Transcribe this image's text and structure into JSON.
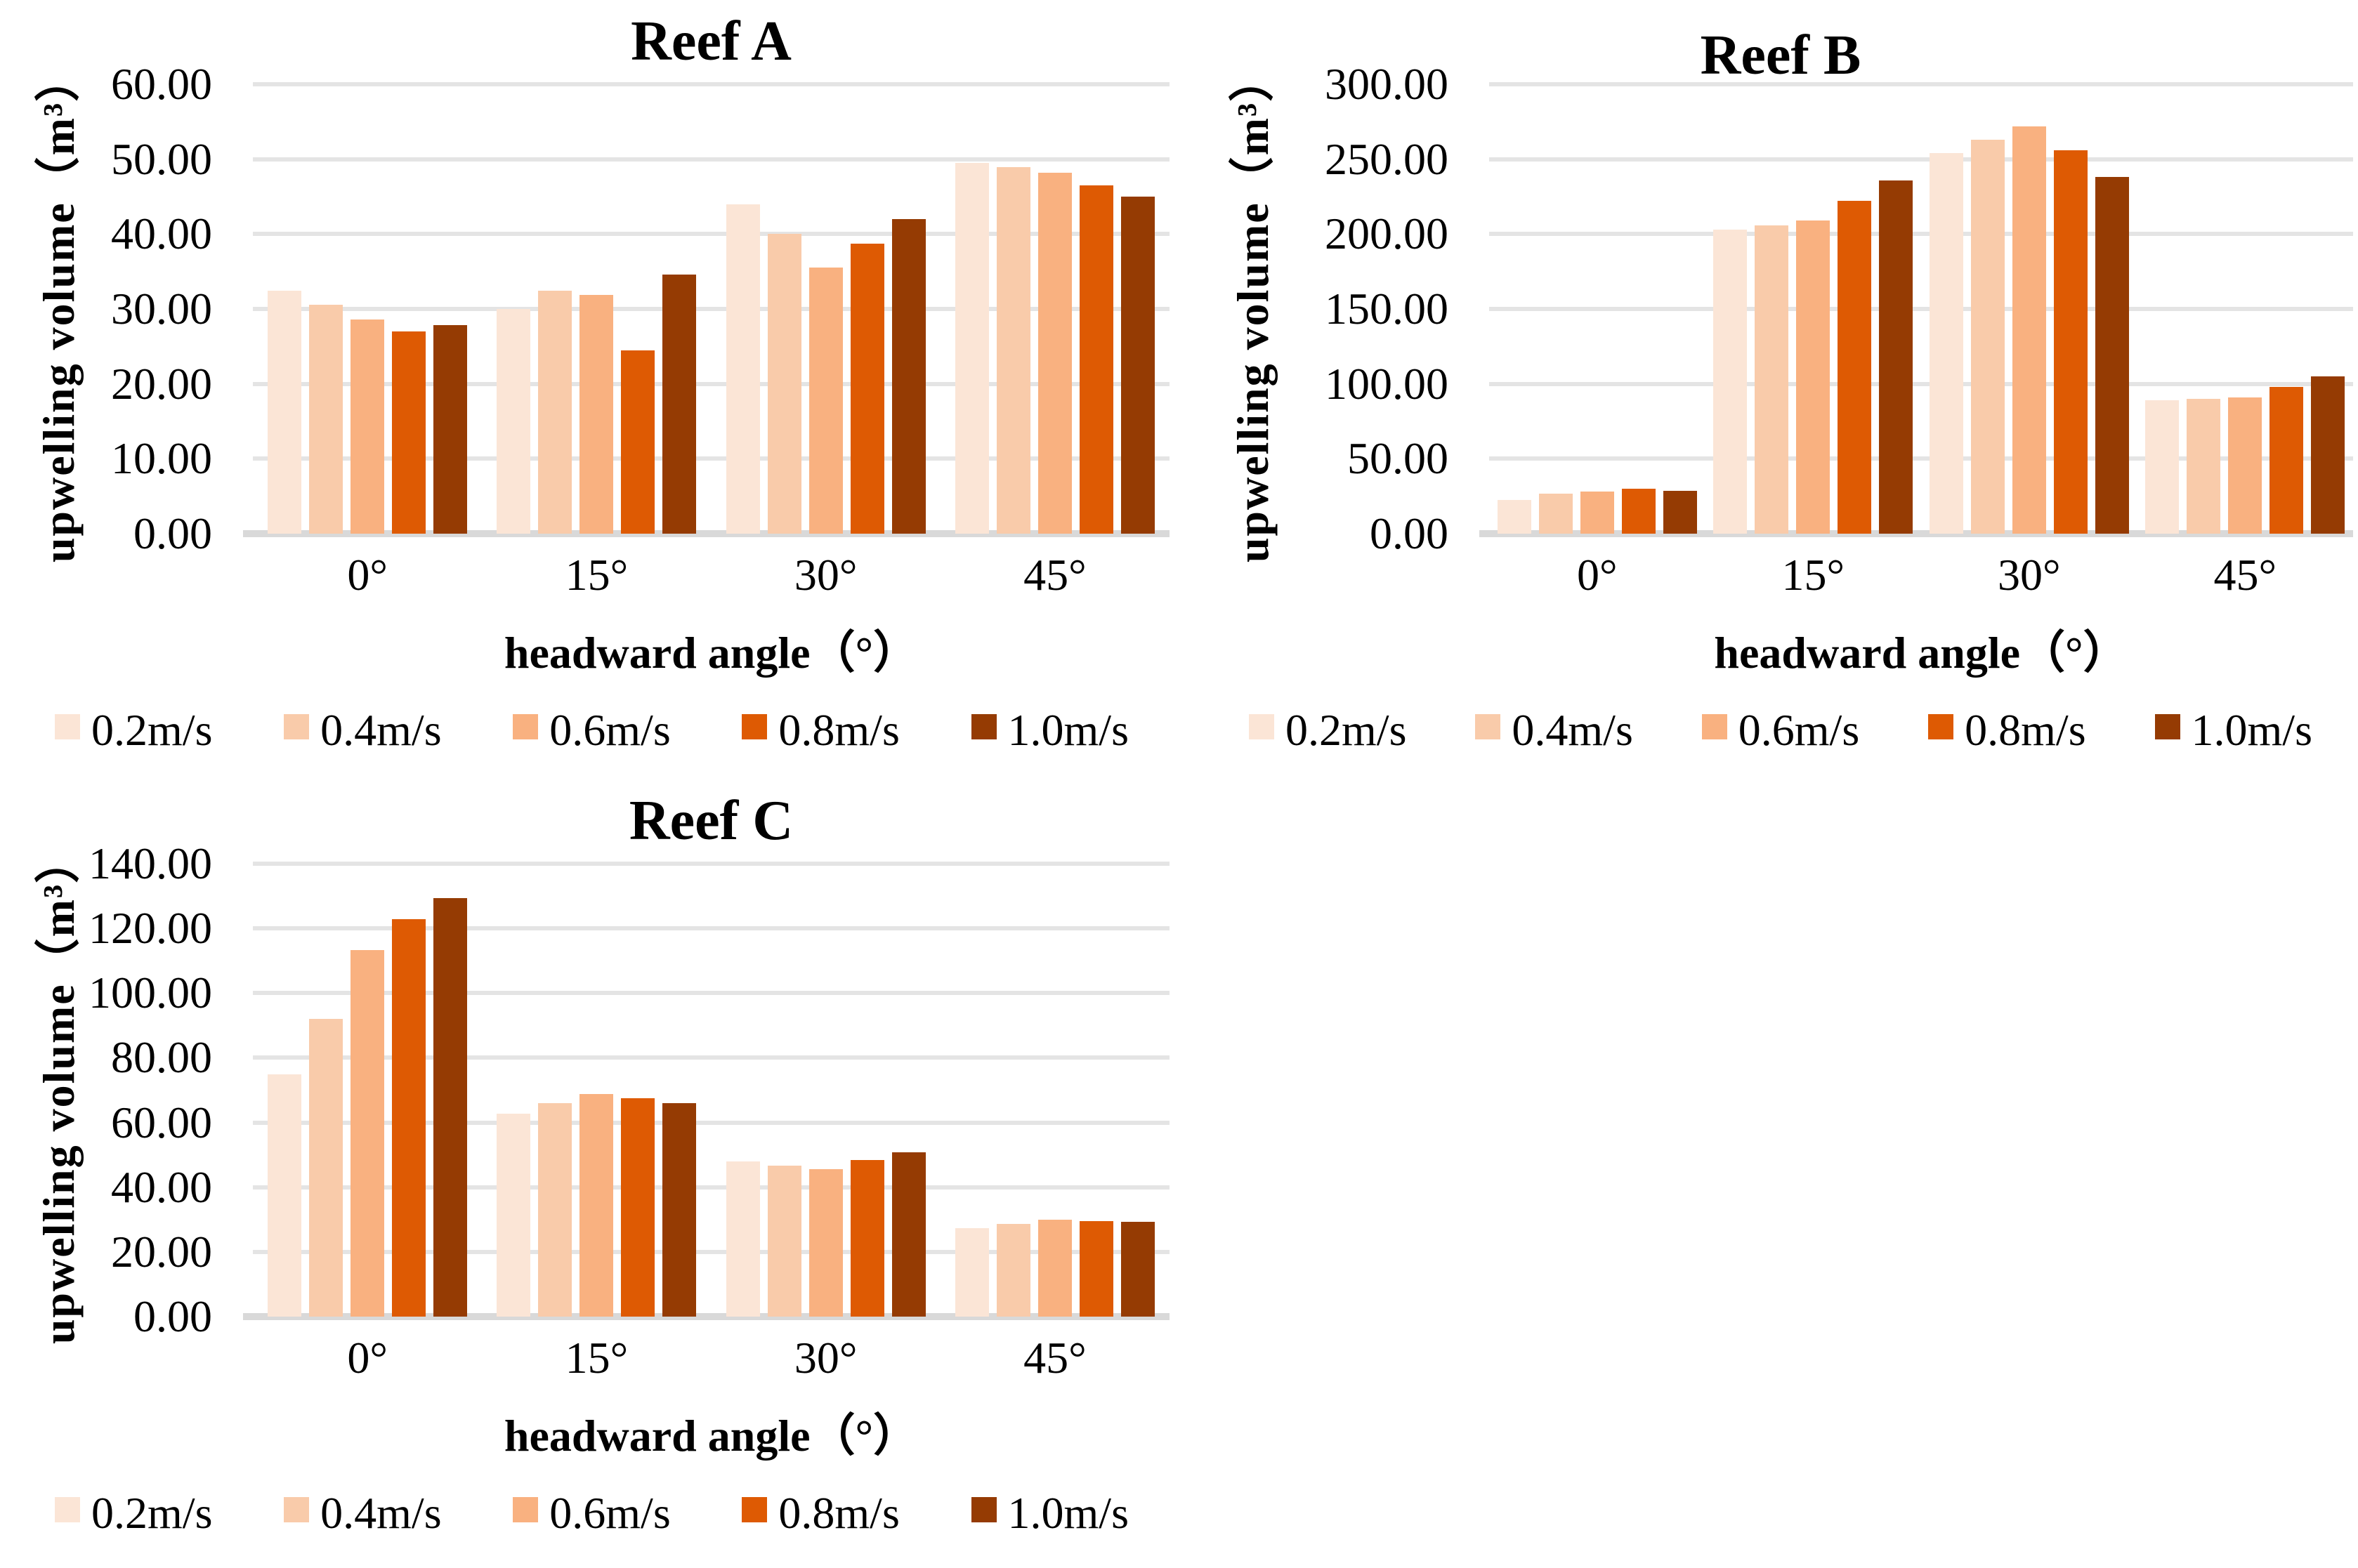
{
  "page": {
    "background": "#ffffff"
  },
  "colors": {
    "gridline": "#e4e4e4",
    "axis_line": "#d9d9d9",
    "series_palette": [
      "#FBE5D6",
      "#F9CBAA",
      "#F9B180",
      "#DE5A03",
      "#953B03"
    ]
  },
  "chart_data": [
    {
      "id": "reef-a",
      "type": "bar",
      "title": "Reef A",
      "xlabel": "headward angle（°）",
      "ylabel": "upwelling volume（m³）",
      "categories": [
        "0°",
        "15°",
        "30°",
        "45°"
      ],
      "series": [
        {
          "name": "0.2m/s",
          "color": "#FBE5D6",
          "values": [
            32.4,
            30.0,
            44.0,
            49.5
          ]
        },
        {
          "name": "0.4m/s",
          "color": "#F9CBAA",
          "values": [
            30.6,
            32.4,
            40.0,
            48.9
          ]
        },
        {
          "name": "0.6m/s",
          "color": "#F9B180",
          "values": [
            28.6,
            31.9,
            35.5,
            48.2
          ]
        },
        {
          "name": "0.8m/s",
          "color": "#DE5A03",
          "values": [
            27.0,
            24.5,
            38.7,
            46.5
          ]
        },
        {
          "name": "1.0m/s",
          "color": "#953B03",
          "values": [
            27.8,
            34.6,
            42.0,
            45.0
          ]
        }
      ],
      "ylim": [
        0,
        60
      ],
      "ystep": 10,
      "ytick_labels": [
        "60.00",
        "50.00",
        "40.00",
        "30.00",
        "20.00",
        "10.00",
        "0.00"
      ],
      "grid": true,
      "legend_position": "bottom"
    },
    {
      "id": "reef-b",
      "type": "bar",
      "title": "Reef B",
      "xlabel": "headward angle（°）",
      "ylabel": "upwelling volume（m³）",
      "categories": [
        "0°",
        "15°",
        "30°",
        "45°"
      ],
      "series": [
        {
          "name": "0.2m/s",
          "color": "#FBE5D6",
          "values": [
            22.5,
            203.0,
            254.0,
            89.0
          ]
        },
        {
          "name": "0.4m/s",
          "color": "#F9CBAA",
          "values": [
            26.5,
            206.0,
            263.0,
            90.0
          ]
        },
        {
          "name": "0.6m/s",
          "color": "#F9B180",
          "values": [
            28.0,
            209.0,
            272.0,
            91.0
          ]
        },
        {
          "name": "0.8m/s",
          "color": "#DE5A03",
          "values": [
            30.0,
            222.0,
            256.0,
            98.0
          ]
        },
        {
          "name": "1.0m/s",
          "color": "#953B03",
          "values": [
            28.5,
            236.0,
            238.0,
            105.0
          ]
        }
      ],
      "ylim": [
        0,
        300
      ],
      "ystep": 50,
      "ytick_labels": [
        "300.00",
        "250.00",
        "200.00",
        "150.00",
        "100.00",
        "50.00",
        "0.00"
      ],
      "grid": true,
      "legend_position": "bottom"
    },
    {
      "id": "reef-c",
      "type": "bar",
      "title": "Reef C",
      "xlabel": "headward angle（°）",
      "ylabel": "upwelling volume（m³）",
      "categories": [
        "0°",
        "15°",
        "30°",
        "45°"
      ],
      "series": [
        {
          "name": "0.2m/s",
          "color": "#FBE5D6",
          "values": [
            74.8,
            62.8,
            48.0,
            27.4
          ]
        },
        {
          "name": "0.4m/s",
          "color": "#F9CBAA",
          "values": [
            92.0,
            65.9,
            46.6,
            28.6
          ]
        },
        {
          "name": "0.6m/s",
          "color": "#F9B180",
          "values": [
            113.2,
            68.9,
            45.6,
            29.9
          ]
        },
        {
          "name": "0.8m/s",
          "color": "#DE5A03",
          "values": [
            122.8,
            67.6,
            48.3,
            29.6
          ]
        },
        {
          "name": "1.0m/s",
          "color": "#953B03",
          "values": [
            129.4,
            66.0,
            50.8,
            29.4
          ]
        }
      ],
      "ylim": [
        0,
        140
      ],
      "ystep": 20,
      "ytick_labels": [
        "140.00",
        "120.00",
        "100.00",
        "80.00",
        "60.00",
        "40.00",
        "20.00",
        "0.00"
      ],
      "grid": true,
      "legend_position": "bottom"
    }
  ]
}
